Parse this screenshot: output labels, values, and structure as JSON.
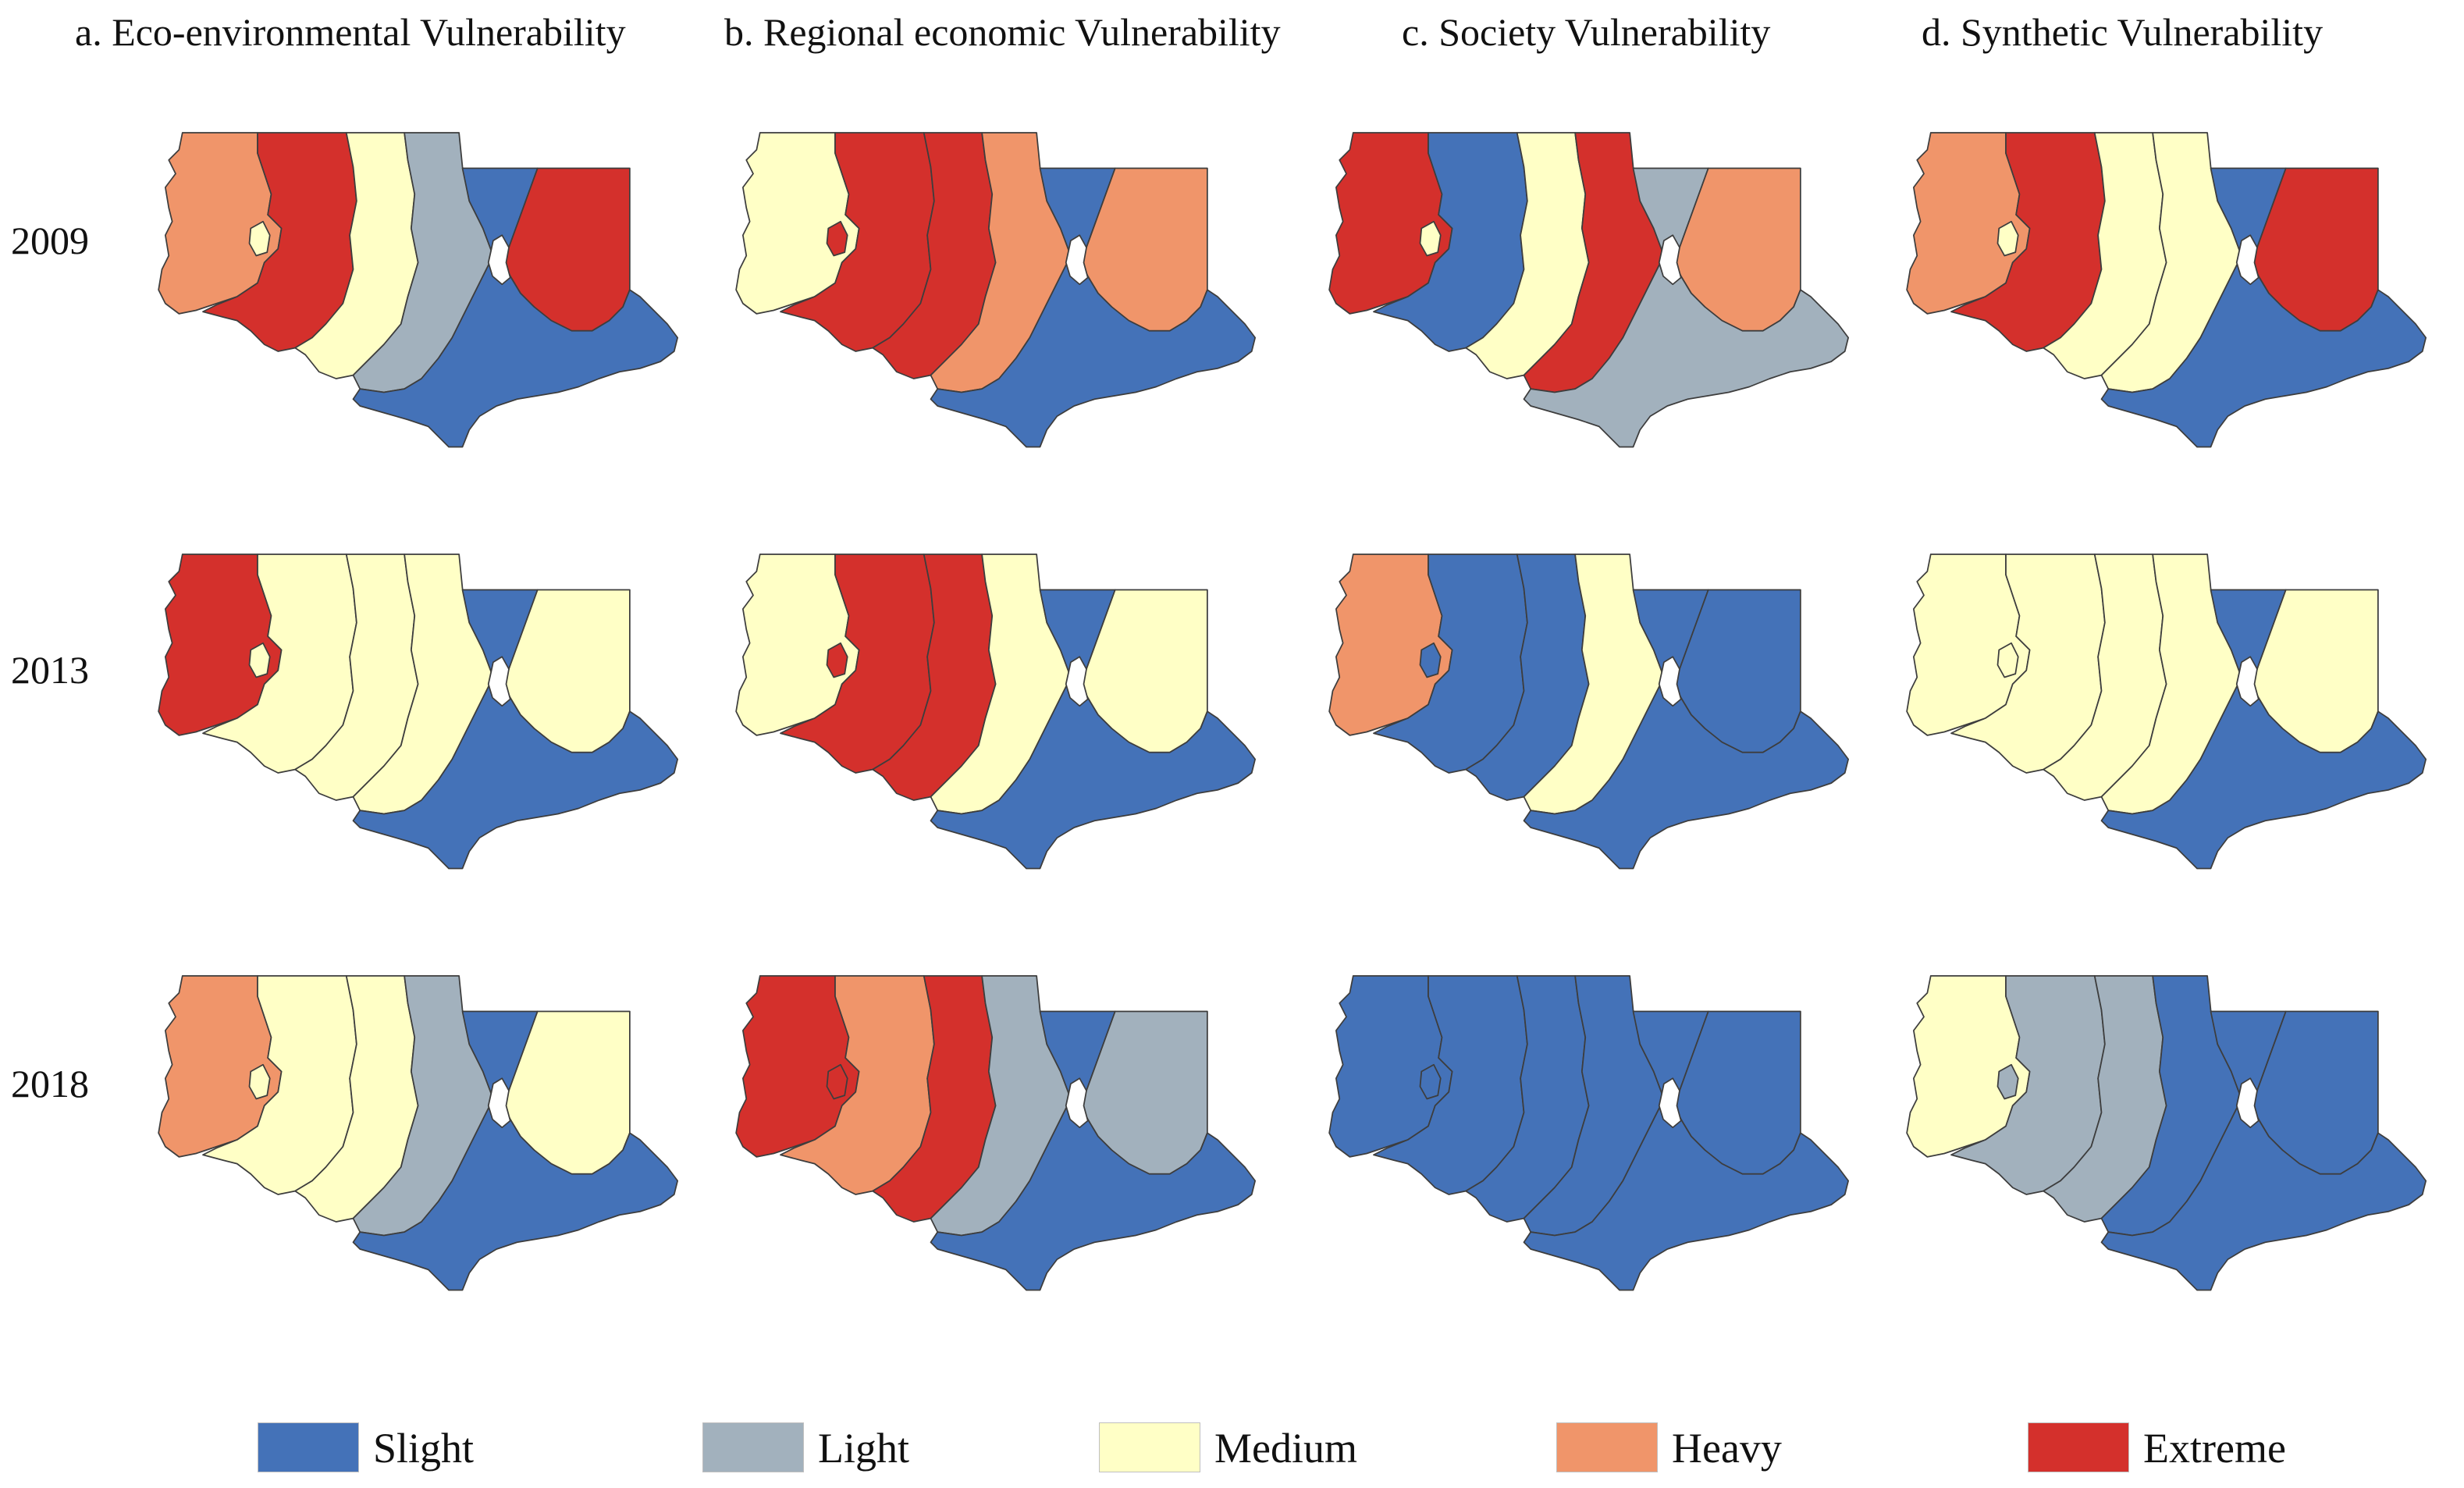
{
  "columns": [
    {
      "title": "a. Eco-environmental Vulnerability"
    },
    {
      "title": "b. Regional economic Vulnerability"
    },
    {
      "title": "c. Society Vulnerability"
    },
    {
      "title": "d. Synthetic Vulnerability"
    }
  ],
  "rows": [
    {
      "year": "2009"
    },
    {
      "year": "2013"
    },
    {
      "year": "2018"
    }
  ],
  "legend": [
    {
      "key": "slight",
      "label": "Slight",
      "color": "#4472b8"
    },
    {
      "key": "light",
      "label": "Light",
      "color": "#a2b1bd"
    },
    {
      "key": "medium",
      "label": "Medium",
      "color": "#ffffc6"
    },
    {
      "key": "heavy",
      "label": "Heavy",
      "color": "#f0956a"
    },
    {
      "key": "extreme",
      "label": "Extreme",
      "color": "#d4302c"
    }
  ],
  "maps": [
    {
      "column": "a. Eco-environmental Vulnerability",
      "year": "2009",
      "regions": [
        "heavy",
        "extreme",
        "medium",
        "light",
        "slight",
        "extreme",
        "slight"
      ]
    },
    {
      "column": "b. Regional economic Vulnerability",
      "year": "2009",
      "regions": [
        "medium",
        "extreme",
        "extreme",
        "heavy",
        "slight",
        "heavy",
        "slight"
      ]
    },
    {
      "column": "c. Society Vulnerability",
      "year": "2009",
      "regions": [
        "extreme",
        "slight",
        "medium",
        "extreme",
        "light",
        "heavy",
        "light"
      ]
    },
    {
      "column": "d. Synthetic Vulnerability",
      "year": "2009",
      "regions": [
        "heavy",
        "extreme",
        "medium",
        "medium",
        "slight",
        "extreme",
        "slight"
      ]
    },
    {
      "column": "a. Eco-environmental Vulnerability",
      "year": "2013",
      "regions": [
        "extreme",
        "medium",
        "medium",
        "medium",
        "slight",
        "medium",
        "slight"
      ]
    },
    {
      "column": "b. Regional economic Vulnerability",
      "year": "2013",
      "regions": [
        "medium",
        "extreme",
        "extreme",
        "medium",
        "slight",
        "medium",
        "slight"
      ]
    },
    {
      "column": "c. Society Vulnerability",
      "year": "2013",
      "regions": [
        "heavy",
        "slight",
        "slight",
        "medium",
        "slight",
        "slight",
        "slight"
      ]
    },
    {
      "column": "d. Synthetic Vulnerability",
      "year": "2013",
      "regions": [
        "medium",
        "medium",
        "medium",
        "medium",
        "slight",
        "medium",
        "slight"
      ]
    },
    {
      "column": "a. Eco-environmental Vulnerability",
      "year": "2018",
      "regions": [
        "heavy",
        "medium",
        "medium",
        "light",
        "slight",
        "medium",
        "slight"
      ]
    },
    {
      "column": "b. Regional economic Vulnerability",
      "year": "2018",
      "regions": [
        "extreme",
        "heavy",
        "extreme",
        "light",
        "slight",
        "light",
        "slight"
      ]
    },
    {
      "column": "c. Society Vulnerability",
      "year": "2018",
      "regions": [
        "slight",
        "slight",
        "slight",
        "slight",
        "slight",
        "slight",
        "slight"
      ]
    },
    {
      "column": "d. Synthetic Vulnerability",
      "year": "2018",
      "regions": [
        "medium",
        "light",
        "light",
        "slight",
        "slight",
        "slight",
        "slight"
      ]
    }
  ]
}
